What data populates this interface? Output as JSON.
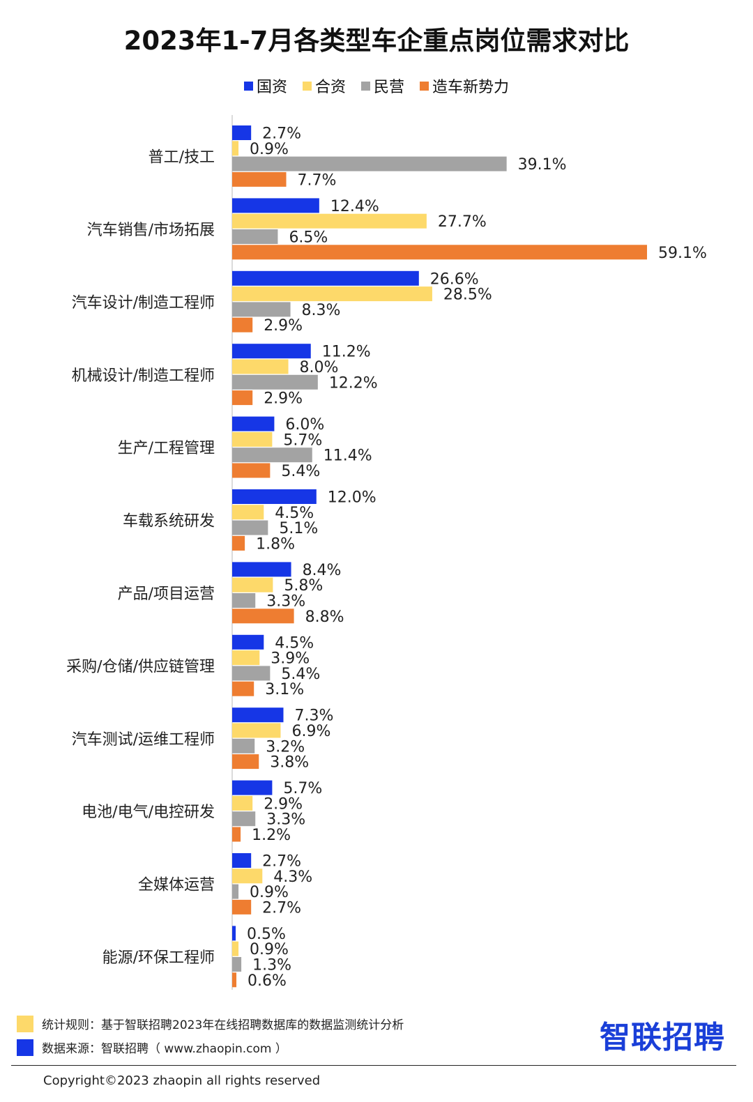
{
  "title": "2023年1-7月各类型车企重点岗位需求对比",
  "legend": [
    {
      "label": "国资",
      "color": "#1636e6"
    },
    {
      "label": "合资",
      "color": "#fdd96a"
    },
    {
      "label": "民营",
      "color": "#a3a3a3"
    },
    {
      "label": "造车新势力",
      "color": "#ee7d31"
    }
  ],
  "chart_data": {
    "type": "bar",
    "orientation": "horizontal",
    "title": "2023年1-7月各类型车企重点岗位需求对比",
    "categories": [
      "普工/技工",
      "汽车销售/市场拓展",
      "汽车设计/制造工程师",
      "机械设计/制造工程师",
      "生产/工程管理",
      "车载系统研发",
      "产品/项目运营",
      "采购/仓储/供应链管理",
      "汽车测试/运维工程师",
      "电池/电气/电控研发",
      "全媒体运营",
      "能源/环保工程师"
    ],
    "series": [
      {
        "name": "国资",
        "color": "#1636e6",
        "values": [
          2.7,
          12.4,
          26.6,
          11.2,
          6.0,
          12.0,
          8.4,
          4.5,
          7.3,
          5.7,
          2.7,
          0.5
        ]
      },
      {
        "name": "合资",
        "color": "#fdd96a",
        "values": [
          0.9,
          27.7,
          28.5,
          8.0,
          5.7,
          4.5,
          5.8,
          3.9,
          6.9,
          2.9,
          4.3,
          0.9
        ]
      },
      {
        "name": "民营",
        "color": "#a3a3a3",
        "values": [
          39.1,
          6.5,
          8.3,
          12.2,
          11.4,
          5.1,
          3.3,
          5.4,
          3.2,
          3.3,
          0.9,
          1.3
        ]
      },
      {
        "name": "造车新势力",
        "color": "#ee7d31",
        "values": [
          7.7,
          59.1,
          2.9,
          2.9,
          5.4,
          1.8,
          8.8,
          3.1,
          3.8,
          1.2,
          2.7,
          0.6
        ]
      }
    ],
    "value_suffix": "%",
    "xlim": [
      0,
      60
    ],
    "grid": false,
    "legend_position": "top"
  },
  "footer": {
    "note1": "统计规则：基于智联招聘2023年在线招聘数据库的数据监测统计分析",
    "note1_color": "#fdd96a",
    "note2": "数据来源：智联招聘（ www.zhaopin.com ）",
    "note2_color": "#1636e6",
    "brand": "智联招聘",
    "copyright": "Copyright©2023 zhaopin all rights reserved"
  }
}
